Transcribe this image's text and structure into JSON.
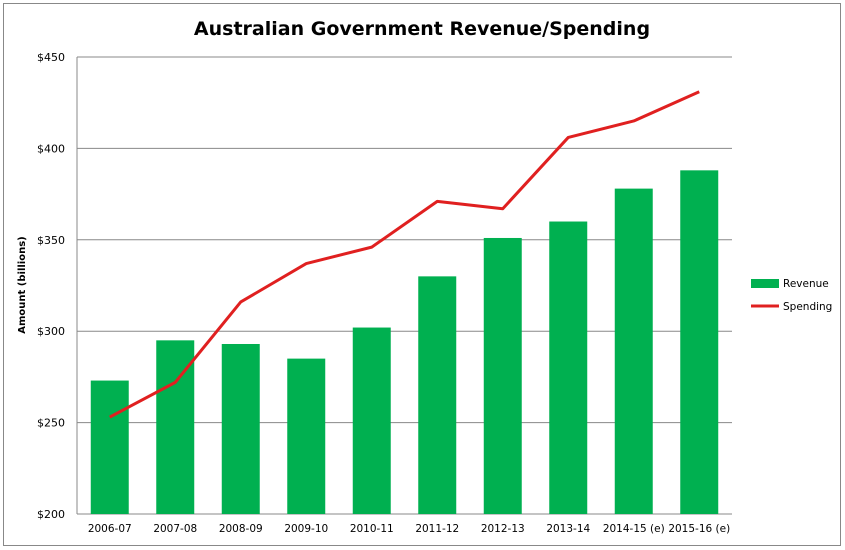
{
  "chart_data": {
    "type": "bar",
    "title": "Australian Government Revenue/Spending",
    "xlabel": "",
    "ylabel": "Amount (billions)",
    "ylim": [
      200,
      450
    ],
    "yticks": [
      200,
      250,
      300,
      350,
      400,
      450
    ],
    "ytick_labels": [
      "$200",
      "$250",
      "$300",
      "$350",
      "$400",
      "$450"
    ],
    "grid": true,
    "legend_position": "right",
    "categories": [
      "2006-07",
      "2007-08",
      "2008-09",
      "2009-10",
      "2010-11",
      "2011-12",
      "2012-13",
      "2013-14",
      "2014-15 (e)",
      "2015-16 (e)"
    ],
    "series": [
      {
        "name": "Revenue",
        "type": "bar",
        "color": "#00b050",
        "values": [
          273,
          295,
          293,
          285,
          302,
          330,
          351,
          360,
          378,
          388
        ]
      },
      {
        "name": "Spending",
        "type": "line",
        "color": "#e02020",
        "values": [
          253,
          272,
          316,
          337,
          346,
          371,
          367,
          406,
          415,
          431
        ]
      }
    ]
  }
}
